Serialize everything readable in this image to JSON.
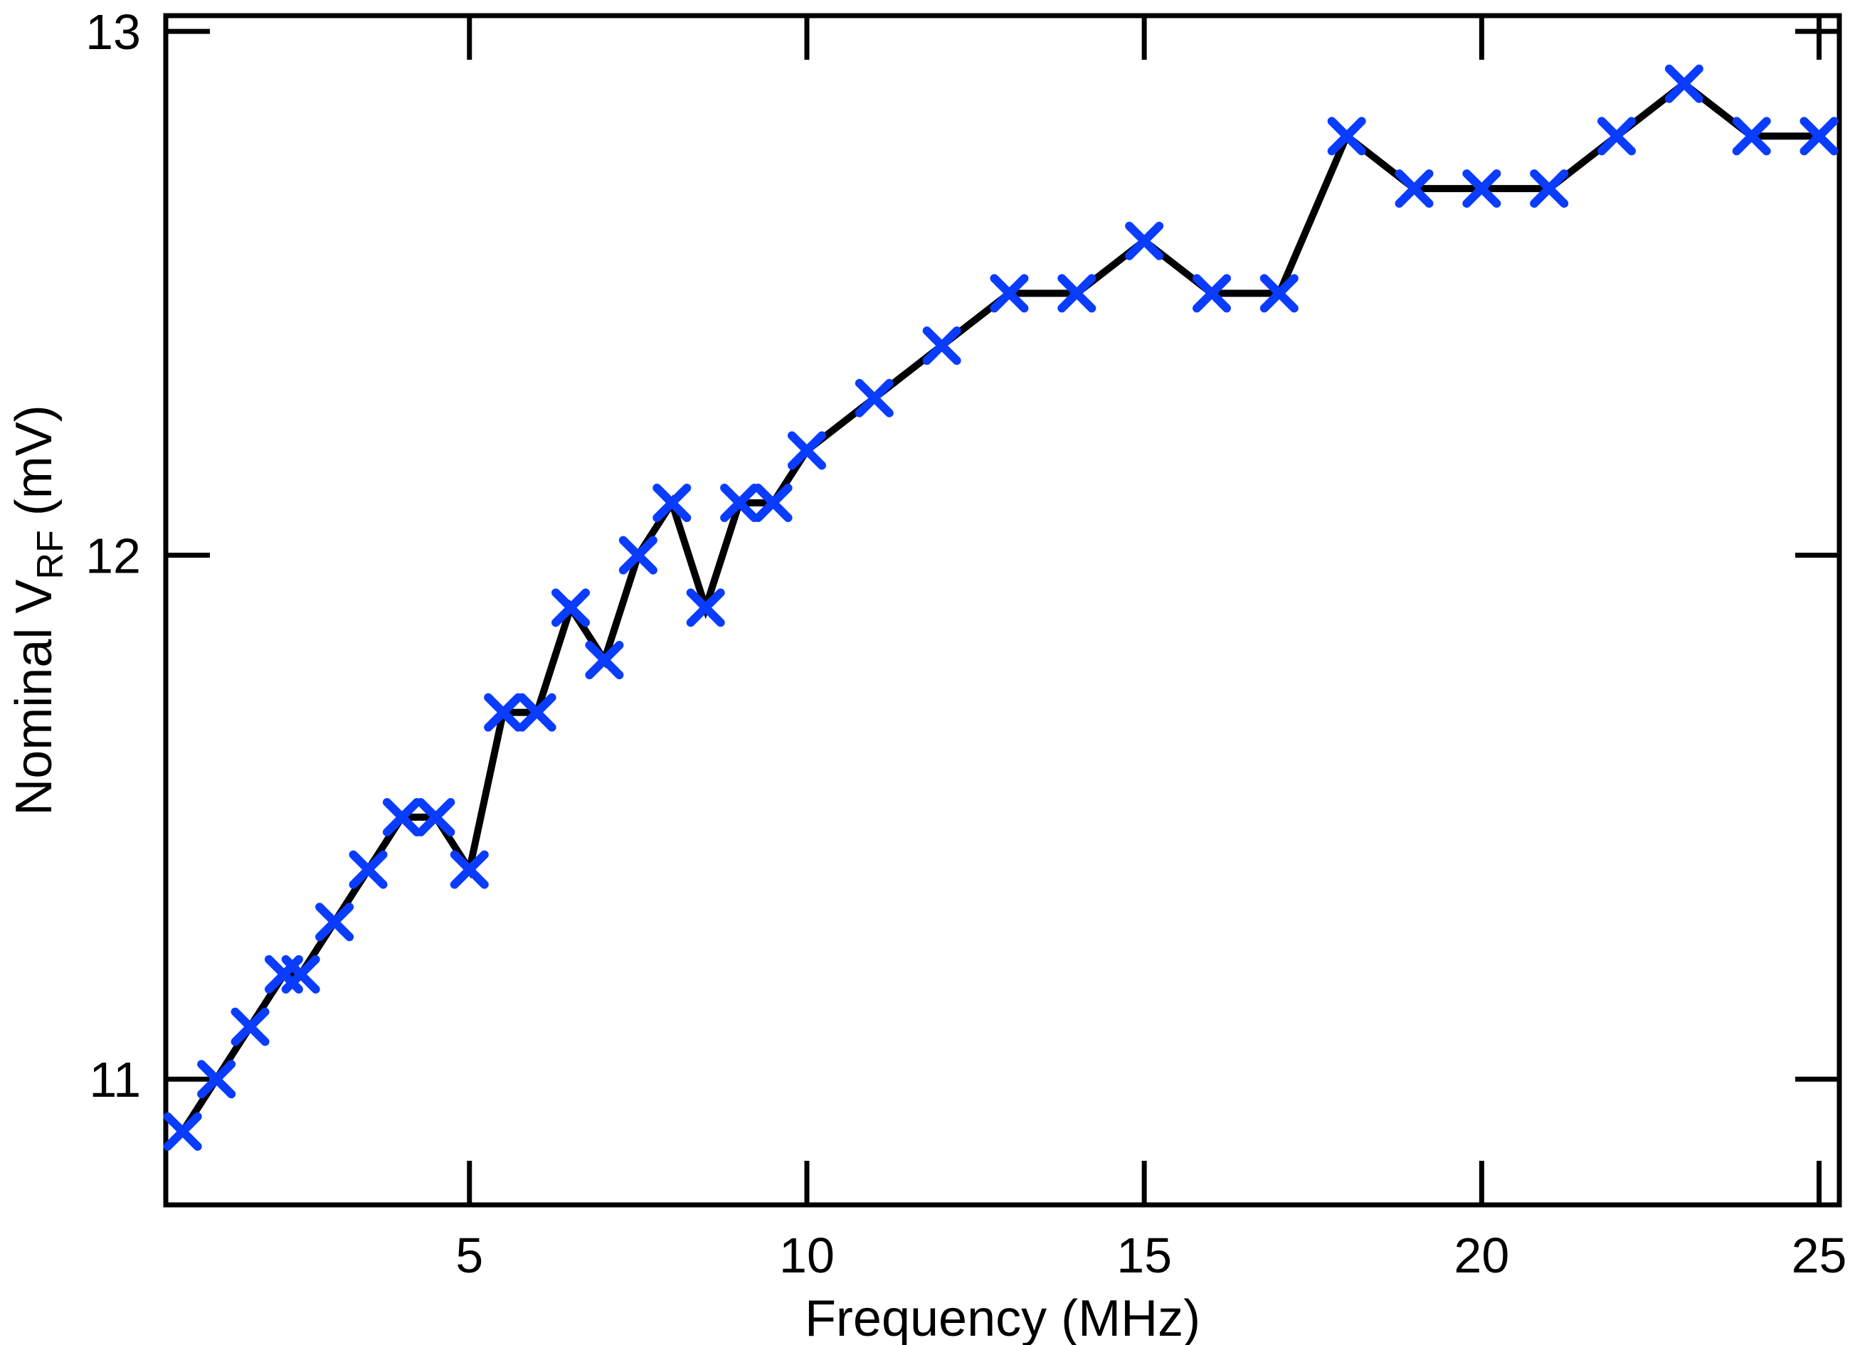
{
  "chart_data": {
    "type": "line",
    "xlabel": "Frequency (MHz)",
    "ylabel": {
      "prefix": "Nominal V",
      "subscript": "RF",
      "suffix": " (mV)"
    },
    "xlim": [
      0.5,
      25.3
    ],
    "ylim": [
      10.76,
      13.03
    ],
    "xticks": [
      5,
      10,
      15,
      20,
      25
    ],
    "yticks": [
      11,
      12,
      13
    ],
    "grid": false,
    "colors": {
      "line": "#000000",
      "marker": "#0a3cff",
      "axes": "#000000"
    },
    "marker": "x-marker",
    "series": [
      {
        "x": [
          0.75,
          1.25,
          1.75,
          2.25,
          2.5,
          3,
          3.5,
          4,
          4.5,
          5,
          5.5,
          6,
          6.5,
          7,
          7.5,
          8,
          8.5,
          9,
          9.5,
          10,
          11,
          12,
          13,
          14,
          15,
          16,
          17,
          18,
          19,
          20,
          21,
          22,
          23,
          24,
          25
        ],
        "y": [
          10.9,
          11.0,
          11.1,
          11.2,
          11.2,
          11.3,
          11.4,
          11.5,
          11.5,
          11.4,
          11.7,
          11.7,
          11.9,
          11.8,
          12.0,
          12.1,
          11.9,
          12.1,
          12.1,
          12.2,
          12.3,
          12.4,
          12.5,
          12.5,
          12.6,
          12.5,
          12.5,
          12.8,
          12.7,
          12.7,
          12.7,
          12.8,
          12.9,
          12.8,
          12.8
        ]
      }
    ]
  }
}
